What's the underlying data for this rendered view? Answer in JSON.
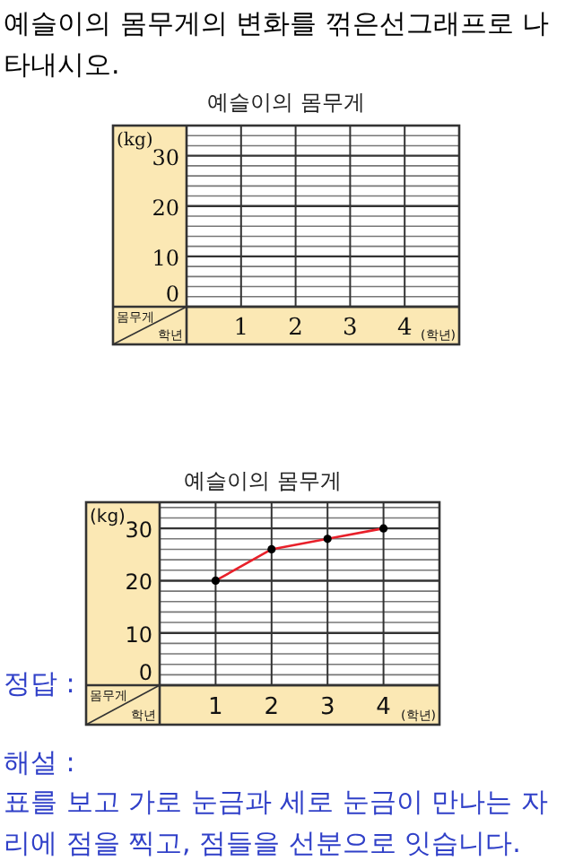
{
  "chart_data": [
    {
      "type": "line",
      "title": "예슬이의 몸무게",
      "categories": [
        "1",
        "2",
        "3",
        "4"
      ],
      "values": [
        null,
        null,
        null,
        null
      ],
      "ylabel": "(kg)",
      "xlabel": "(학년)",
      "ylim": [
        0,
        36
      ],
      "yticks": [
        0,
        {
          "value": 2,
          "label": null
        },
        {
          "value": 4,
          "label": null
        },
        {
          "value": 6,
          "label": null
        },
        {
          "value": 8,
          "label": null
        },
        10,
        {
          "value": 12,
          "label": null
        },
        {
          "value": 14,
          "label": null
        },
        {
          "value": 16,
          "label": null
        },
        {
          "value": 18,
          "label": null
        },
        20,
        {
          "value": 22,
          "label": null
        },
        {
          "value": 24,
          "label": null
        },
        {
          "value": 26,
          "label": null
        },
        {
          "value": 28,
          "label": null
        },
        30,
        {
          "value": 32,
          "label": null
        },
        {
          "value": 34,
          "label": null
        }
      ],
      "grid": true,
      "annotations": [
        "예슬이의 몸무게의 변화를 꺾은선그래프로 나타내시오.",
        "몸무게",
        "학년"
      ]
    },
    {
      "type": "line",
      "title": "예슬이의 몸무게",
      "categories": [
        "1",
        "2",
        "3",
        "4"
      ],
      "values": [
        20,
        26,
        28,
        30
      ],
      "color": "#e8202a",
      "marker": "circle",
      "ylabel": "(kg)",
      "xlabel": "(학년)",
      "ylim": [
        0,
        35
      ],
      "yticks": [
        0,
        {
          "value": 2,
          "label": null
        },
        {
          "value": 4,
          "label": null
        },
        {
          "value": 6,
          "label": null
        },
        {
          "value": 8,
          "label": null
        },
        10,
        {
          "value": 12,
          "label": null
        },
        {
          "value": 14,
          "label": null
        },
        {
          "value": 16,
          "label": null
        },
        {
          "value": 18,
          "label": null
        },
        20,
        {
          "value": 22,
          "label": null
        },
        {
          "value": 24,
          "label": null
        },
        {
          "value": 26,
          "label": null
        },
        {
          "value": 28,
          "label": null
        },
        30,
        {
          "value": 32,
          "label": null
        },
        {
          "value": 34,
          "label": null
        }
      ],
      "grid": true,
      "annotations": [
        "정답 :",
        "몸무게",
        "학년",
        "해설 :",
        "표를 보고 가로 눈금과 세로 눈금이 만나는 자리에 점을 찍고, 점들을 선분으로 잇습니다."
      ]
    }
  ]
}
